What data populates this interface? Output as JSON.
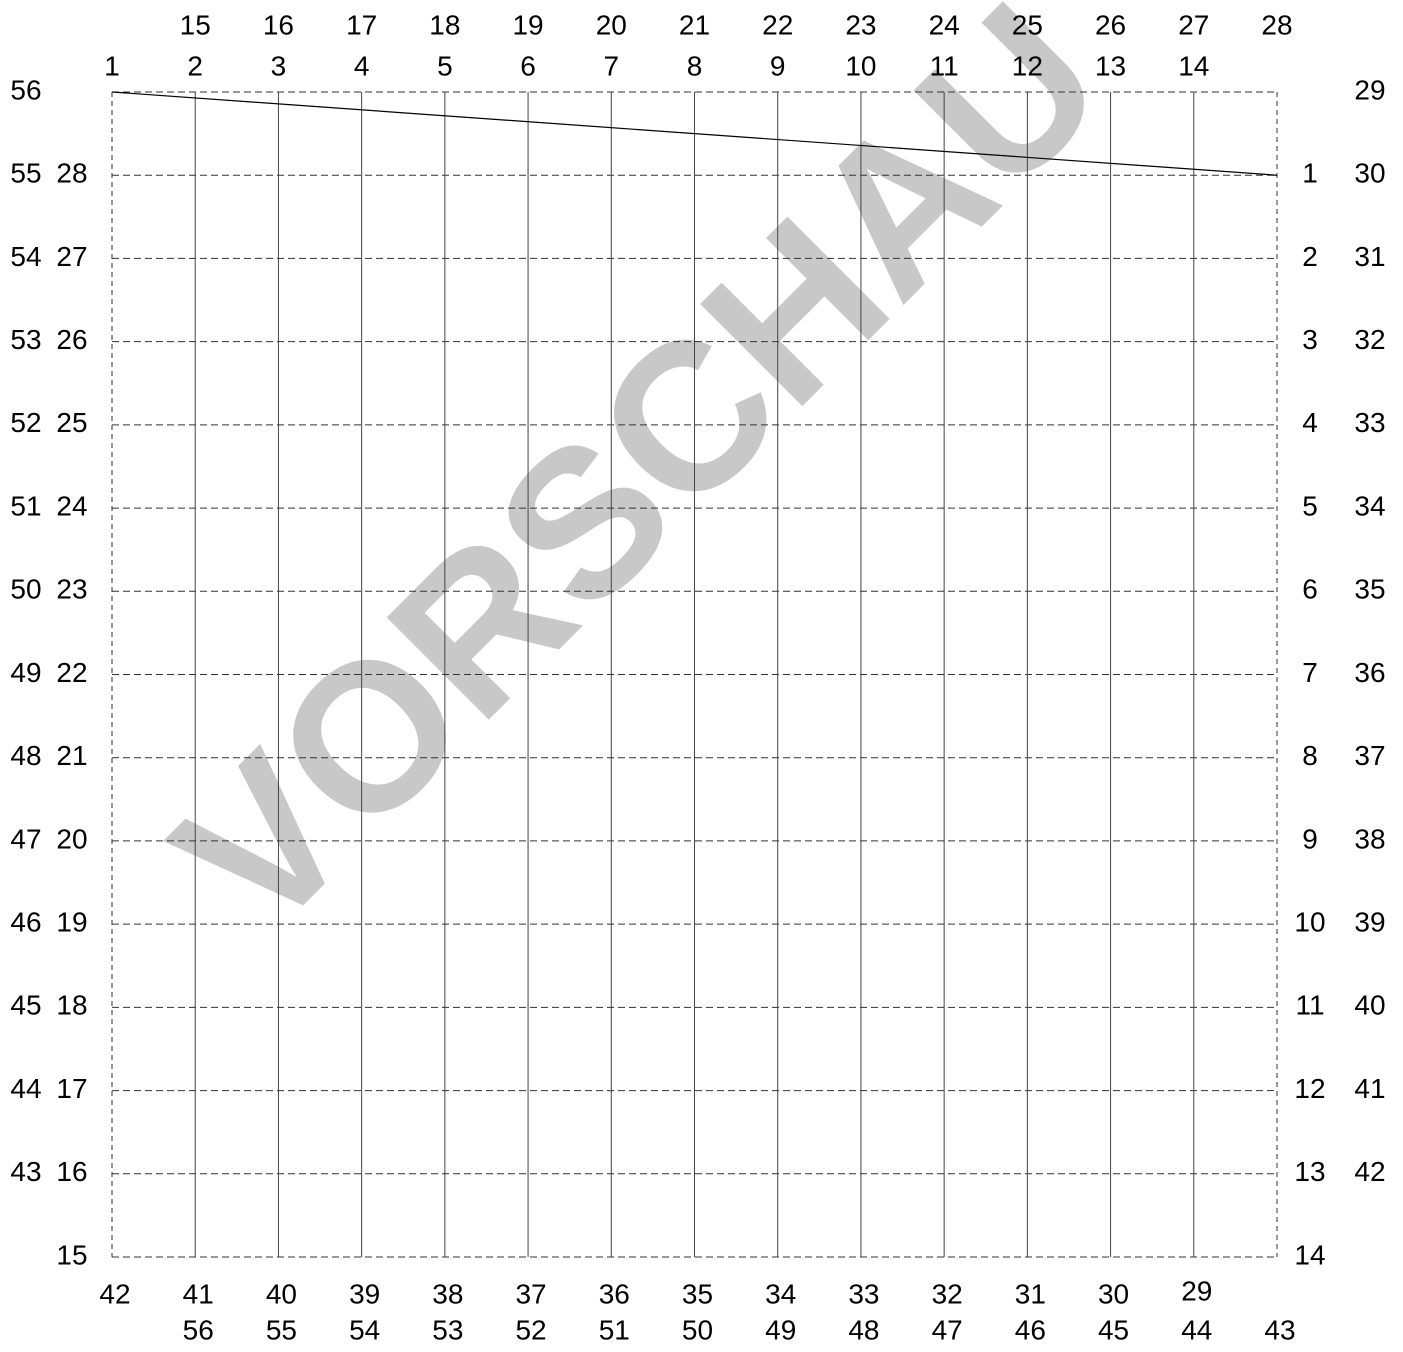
{
  "watermark": "VORSCHAU",
  "top_outer": [
    15,
    16,
    17,
    18,
    19,
    20,
    21,
    22,
    23,
    24,
    25,
    26,
    27,
    28
  ],
  "top_inner": [
    1,
    2,
    3,
    4,
    5,
    6,
    7,
    8,
    9,
    10,
    11,
    12,
    13,
    14
  ],
  "left_outer": [
    56,
    55,
    54,
    53,
    52,
    51,
    50,
    49,
    48,
    47,
    46,
    45,
    44,
    43
  ],
  "left_inner": [
    28,
    27,
    26,
    25,
    24,
    23,
    22,
    21,
    20,
    19,
    18,
    17,
    16,
    15
  ],
  "right_inner": [
    1,
    2,
    3,
    4,
    5,
    6,
    7,
    8,
    9,
    10,
    11,
    12,
    13,
    14
  ],
  "right_outer": [
    29,
    30,
    31,
    32,
    33,
    34,
    35,
    36,
    37,
    38,
    39,
    40,
    41,
    42
  ],
  "bottom_outer": [
    42,
    41,
    40,
    39,
    38,
    37,
    36,
    35,
    34,
    33,
    32,
    31,
    30,
    29
  ],
  "bottom_inner": [
    56,
    55,
    54,
    53,
    52,
    51,
    50,
    49,
    48,
    47,
    46,
    45,
    44,
    43
  ]
}
